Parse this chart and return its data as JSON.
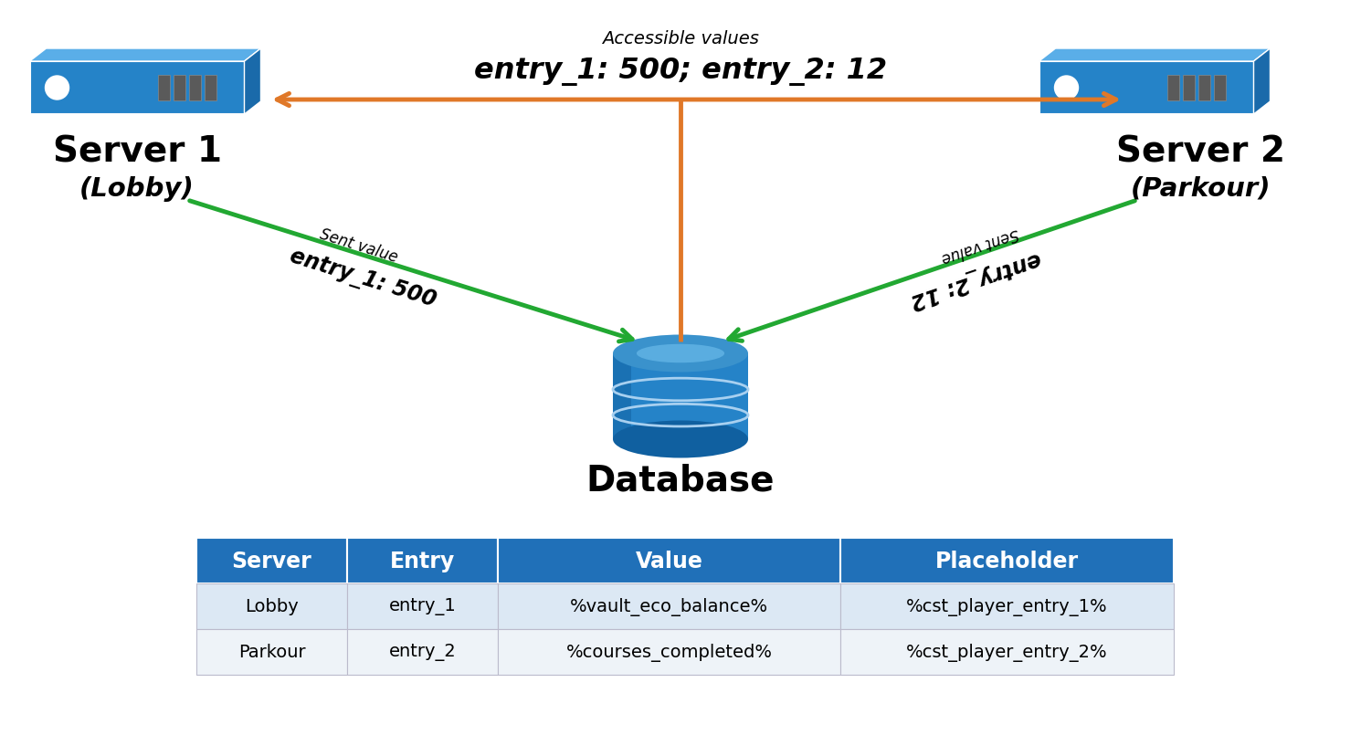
{
  "bg_color": "#ffffff",
  "server1_label": "Server 1",
  "server1_sublabel": "(Lobby)",
  "server2_label": "Server 2",
  "server2_sublabel": "(Parkour)",
  "db_label": "Database",
  "accessible_label": "Accessible values",
  "accessible_value": "entry_1: 500; entry_2: 12",
  "sent_left_label": "Sent value",
  "sent_left_value": "entry_1: 500",
  "sent_right_label": "Sent value",
  "sent_right_value": "entry_2: 12",
  "server_color_main": "#2583c8",
  "server_color_dark": "#1060a0",
  "server_color_side": "#1a6aaa",
  "server_color_top": "#5aaee8",
  "arrow_orange": "#e07828",
  "arrow_green": "#22a832",
  "table_header_color": "#2070b8",
  "table_header_text": "#ffffff",
  "table_row1": [
    "Lobby",
    "entry_1",
    "%vault_eco_balance%",
    "%cst_player_entry_1%"
  ],
  "table_row2": [
    "Parkour",
    "entry_2",
    "%courses_completed%",
    "%cst_player_entry_2%"
  ],
  "table_cols": [
    "Server",
    "Entry",
    "Value",
    "Placeholder"
  ],
  "table_bg_row1": "#dce8f4",
  "table_bg_row2": "#eef3f8"
}
